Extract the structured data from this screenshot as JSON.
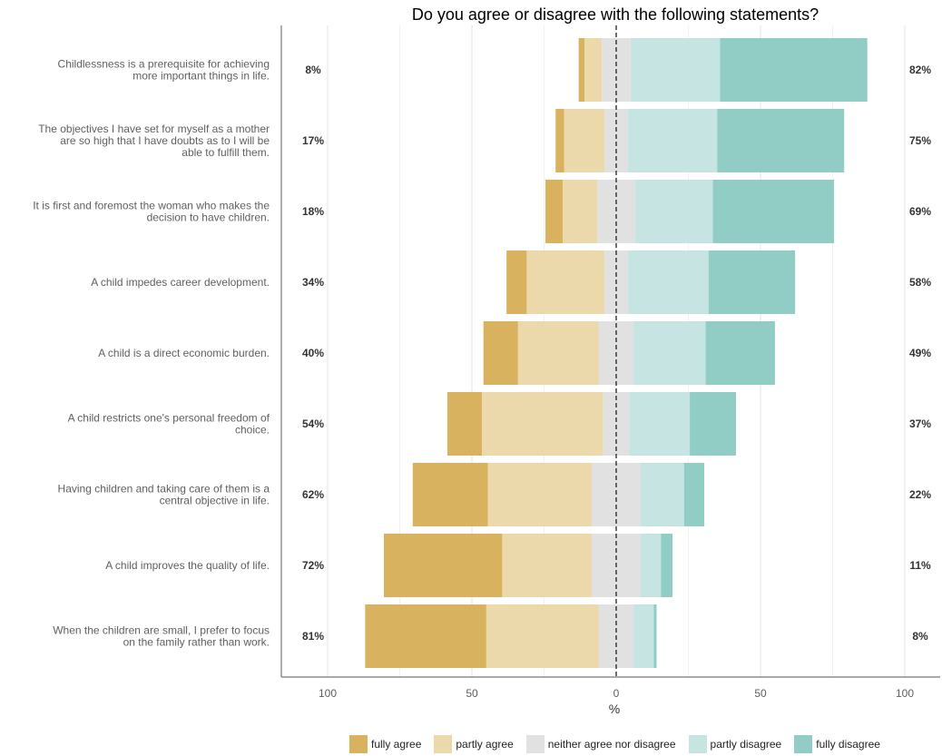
{
  "chart_data": {
    "type": "bar",
    "subtype": "diverging-stacked-horizontal",
    "title": "Do you agree or disagree with the following statements?",
    "xlabel": "%",
    "xlim": [
      -100,
      100
    ],
    "x_ticks": [
      "100",
      "50",
      "0",
      "50",
      "100"
    ],
    "legend_position": "bottom",
    "categories": [
      "Childlessness is a prerequisite for achieving more important things in life.",
      "The objectives I have set for myself as a mother are so high that I have doubts as to I will be able to fulfill them.",
      "It is first and foremost the woman who makes the decision to have children.",
      "A child impedes career development.",
      "A child is a direct economic burden.",
      "A child restricts one's personal freedom of choice.",
      "Having children and taking care of them is a central objective in life.",
      "A child improves the quality of life.",
      "When the children are small, I prefer to focus on the family rather than work."
    ],
    "agree_labels": [
      "8%",
      "17%",
      "18%",
      "34%",
      "40%",
      "54%",
      "62%",
      "72%",
      "81%"
    ],
    "disagree_labels": [
      "82%",
      "75%",
      "69%",
      "58%",
      "49%",
      "37%",
      "22%",
      "11%",
      "8%"
    ],
    "series": [
      {
        "name": "fully agree",
        "color": "#d9b25f",
        "values": [
          2,
          3,
          6,
          7,
          12,
          12,
          26,
          41,
          42
        ]
      },
      {
        "name": "partly agree",
        "color": "#ecd9ab",
        "values": [
          6,
          14,
          12,
          27,
          28,
          42,
          36,
          31,
          39
        ]
      },
      {
        "name": "neither agree nor disagree",
        "color": "#e1e1e1",
        "values": [
          10,
          8,
          13,
          8,
          12,
          9,
          17,
          17,
          12
        ]
      },
      {
        "name": "partly disagree",
        "color": "#c6e4e1",
        "values": [
          31,
          31,
          27,
          28,
          25,
          21,
          15,
          7,
          7
        ]
      },
      {
        "name": "fully disagree",
        "color": "#91cdc4",
        "values": [
          51,
          44,
          42,
          30,
          24,
          16,
          7,
          4,
          1
        ]
      }
    ]
  }
}
